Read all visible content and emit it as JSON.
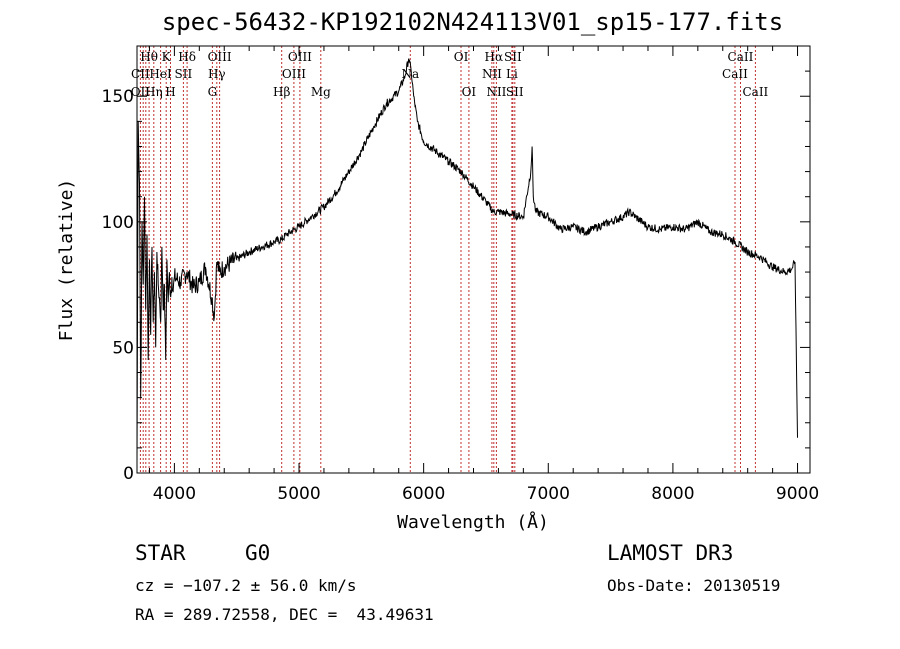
{
  "chart_data": {
    "type": "line",
    "title": "spec-56432-KP192102N424113V01_sp15-177.fits",
    "xlabel": "Wavelength (Å)",
    "ylabel": "Flux (relative)",
    "xlim": [
      3700,
      9100
    ],
    "ylim": [
      0,
      170
    ],
    "xticks": [
      4000,
      5000,
      6000,
      7000,
      8000,
      9000
    ],
    "yticks": [
      0,
      50,
      100,
      150
    ],
    "series": [
      {
        "x": [
          3700,
          3710,
          3720,
          3730,
          3740,
          3750,
          3760,
          3770,
          3780,
          3790,
          3800,
          3810,
          3820,
          3830,
          3840,
          3850,
          3860,
          3870,
          3880,
          3890,
          3900,
          3910,
          3920,
          3930,
          3940,
          3950,
          3960,
          3970,
          3980,
          3990,
          4000,
          4050,
          4100,
          4150,
          4200,
          4250,
          4300,
          4320,
          4340,
          4360,
          4400,
          4500,
          4600,
          4700,
          4800,
          4860,
          4900,
          5000,
          5100,
          5200,
          5300,
          5400,
          5500,
          5600,
          5700,
          5800,
          5850,
          5880,
          5900,
          5920,
          5950,
          6000,
          6100,
          6200,
          6300,
          6400,
          6500,
          6560,
          6600,
          6700,
          6800,
          6860,
          6870,
          6880,
          6900,
          7000,
          7100,
          7200,
          7300,
          7400,
          7500,
          7600,
          7650,
          7700,
          7800,
          7900,
          8000,
          8100,
          8200,
          8300,
          8400,
          8500,
          8600,
          8700,
          8800,
          8900,
          8950,
          8980,
          9000
        ],
        "y": [
          5,
          140,
          115,
          30,
          100,
          75,
          110,
          65,
          95,
          45,
          85,
          55,
          90,
          60,
          80,
          50,
          88,
          75,
          70,
          60,
          90,
          65,
          75,
          45,
          85,
          68,
          80,
          70,
          78,
          72,
          78,
          76,
          80,
          74,
          76,
          82,
          70,
          62,
          84,
          80,
          82,
          85,
          88,
          90,
          92,
          93,
          95,
          98,
          102,
          106,
          112,
          120,
          128,
          138,
          147,
          152,
          158,
          165,
          160,
          150,
          140,
          132,
          128,
          124,
          120,
          114,
          108,
          104,
          104,
          103,
          102,
          120,
          130,
          110,
          104,
          102,
          97,
          98,
          96,
          98,
          100,
          102,
          104,
          102,
          98,
          97,
          98,
          97,
          100,
          96,
          95,
          92,
          88,
          86,
          82,
          80,
          81,
          84,
          14
        ]
      }
    ],
    "line_labels": [
      {
        "label": "Hθ",
        "wl": 3797,
        "row": 0
      },
      {
        "label": "K",
        "wl": 3934,
        "row": 0
      },
      {
        "label": "Hδ",
        "wl": 4102,
        "row": 0
      },
      {
        "label": "OIII",
        "wl": 4363,
        "row": 0
      },
      {
        "label": "OIII",
        "wl": 5007,
        "row": 0
      },
      {
        "label": "OI",
        "wl": 6300,
        "row": 0
      },
      {
        "label": "Hα",
        "wl": 6563,
        "row": 0
      },
      {
        "label": "SII",
        "wl": 6716,
        "row": 0
      },
      {
        "label": "CaII",
        "wl": 8542,
        "row": 0
      },
      {
        "label": "CII",
        "wl": 3727,
        "row": 1
      },
      {
        "label": "HeI",
        "wl": 3889,
        "row": 1
      },
      {
        "label": "SII",
        "wl": 4072,
        "row": 1
      },
      {
        "label": "Hγ",
        "wl": 4340,
        "row": 1
      },
      {
        "label": "OIII",
        "wl": 4959,
        "row": 1
      },
      {
        "label": "Na",
        "wl": 5893,
        "row": 1
      },
      {
        "label": "NII",
        "wl": 6548,
        "row": 1
      },
      {
        "label": "Li",
        "wl": 6708,
        "row": 1
      },
      {
        "label": "CaII",
        "wl": 8498,
        "row": 1
      },
      {
        "label": "OII",
        "wl": 3727,
        "row": 2
      },
      {
        "label": "Hη",
        "wl": 3835,
        "row": 2
      },
      {
        "label": "H",
        "wl": 3969,
        "row": 2
      },
      {
        "label": "G",
        "wl": 4305,
        "row": 2
      },
      {
        "label": "Hβ",
        "wl": 4861,
        "row": 2
      },
      {
        "label": "Mg",
        "wl": 5175,
        "row": 2
      },
      {
        "label": "OI",
        "wl": 6363,
        "row": 2
      },
      {
        "label": "NII",
        "wl": 6584,
        "row": 2
      },
      {
        "label": "SII",
        "wl": 6731,
        "row": 2
      },
      {
        "label": "CaII",
        "wl": 8662,
        "row": 2
      }
    ],
    "marker_lines": [
      3727,
      3750,
      3771,
      3797,
      3835,
      3889,
      3934,
      3969,
      4072,
      4102,
      4305,
      4340,
      4363,
      4861,
      4959,
      5007,
      5175,
      5893,
      6300,
      6363,
      6548,
      6563,
      6584,
      6708,
      6716,
      6731,
      8498,
      8542,
      8662
    ]
  },
  "info": {
    "object_type": "STAR",
    "subclass": "G0",
    "survey": "LAMOST DR3",
    "cz": "cz = −107.2 ± 56.0 km/s",
    "obs_date": "Obs-Date: 20130519",
    "coords": "RA = 289.72558, DEC =  43.49631"
  }
}
